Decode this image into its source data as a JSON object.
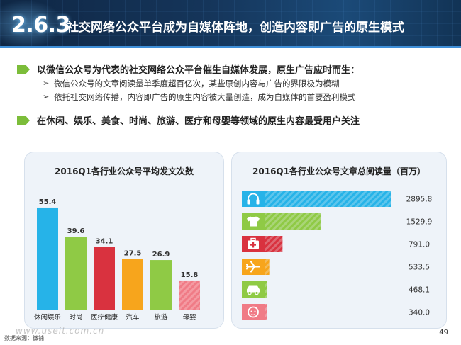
{
  "header": {
    "section_number": "2.6.3",
    "title": "社交网络公众平台成为自媒体阵地，创造内容即广告的原生模式"
  },
  "bullets": [
    {
      "text": "以微信公众号为代表的社交网络公众平台催生自媒体发展，原生广告应时而生：",
      "subs": [
        "微信公众号的文章阅读量单季度超百亿次，某些原创内容与广告的界限极为模糊",
        "依托社交网络传播，内容即广告的原生内容被大量创造，成为自媒体的首要盈利模式"
      ]
    },
    {
      "text": "在休闲、娱乐、美食、时尚、旅游、医疗和母婴等领域的原生内容最受用户关注",
      "subs": []
    }
  ],
  "sub_marker": "➢",
  "colors": {
    "header_bg": "#15355a",
    "bullet_tag": "#7cbd3a",
    "chart_bg": "#eef3f9",
    "bar_blue": "#26b3e8",
    "bar_green": "#8fca45",
    "bar_red": "#d9323f",
    "bar_orange": "#f7a51c",
    "bar_pink": "#f07b86"
  },
  "chart_data": [
    {
      "type": "bar",
      "title": "2016Q1各行业公众号平均发文次数",
      "categories": [
        "休闲娱乐",
        "时尚",
        "医疗健康",
        "汽车",
        "旅游",
        "母婴"
      ],
      "values": [
        55.4,
        39.6,
        34.1,
        27.5,
        26.9,
        15.8
      ],
      "value_labels": [
        "55.4",
        "39.6",
        "34.1",
        "27.5",
        "26.9",
        "15.8"
      ],
      "bar_colors": [
        "#26b3e8",
        "#8fca45",
        "#d9323f",
        "#f7a51c",
        "#8fca45",
        "#f07b86"
      ],
      "striped": [
        false,
        false,
        false,
        false,
        false,
        true
      ],
      "ylim": [
        0,
        60
      ],
      "grid": false,
      "legend": "none"
    },
    {
      "type": "bar",
      "orientation": "horizontal",
      "title": "2016Q1各行业公众号文章总阅读量（百万）",
      "categories": [
        "娱乐",
        "时尚",
        "医疗健康",
        "旅游",
        "汽车",
        "母婴"
      ],
      "icons": [
        "headphones-icon",
        "tshirt-icon",
        "medical-kit-icon",
        "airplane-icon",
        "car-icon",
        "baby-icon"
      ],
      "values": [
        2895.8,
        1529.9,
        791.0,
        533.5,
        468.1,
        340.0
      ],
      "value_labels": [
        "2895.8",
        "1529.9",
        "791.0",
        "533.5",
        "468.1",
        "340.0"
      ],
      "bar_colors": [
        "#26b3e8",
        "#8fca45",
        "#d9323f",
        "#f7a51c",
        "#8fca45",
        "#f07b86"
      ],
      "xlim": [
        0,
        2895.8
      ],
      "grid": false,
      "legend": "none"
    }
  ],
  "footer": {
    "source": "数据来源：微铺",
    "watermark": "www.useit.com.cn",
    "page_number": "49"
  }
}
